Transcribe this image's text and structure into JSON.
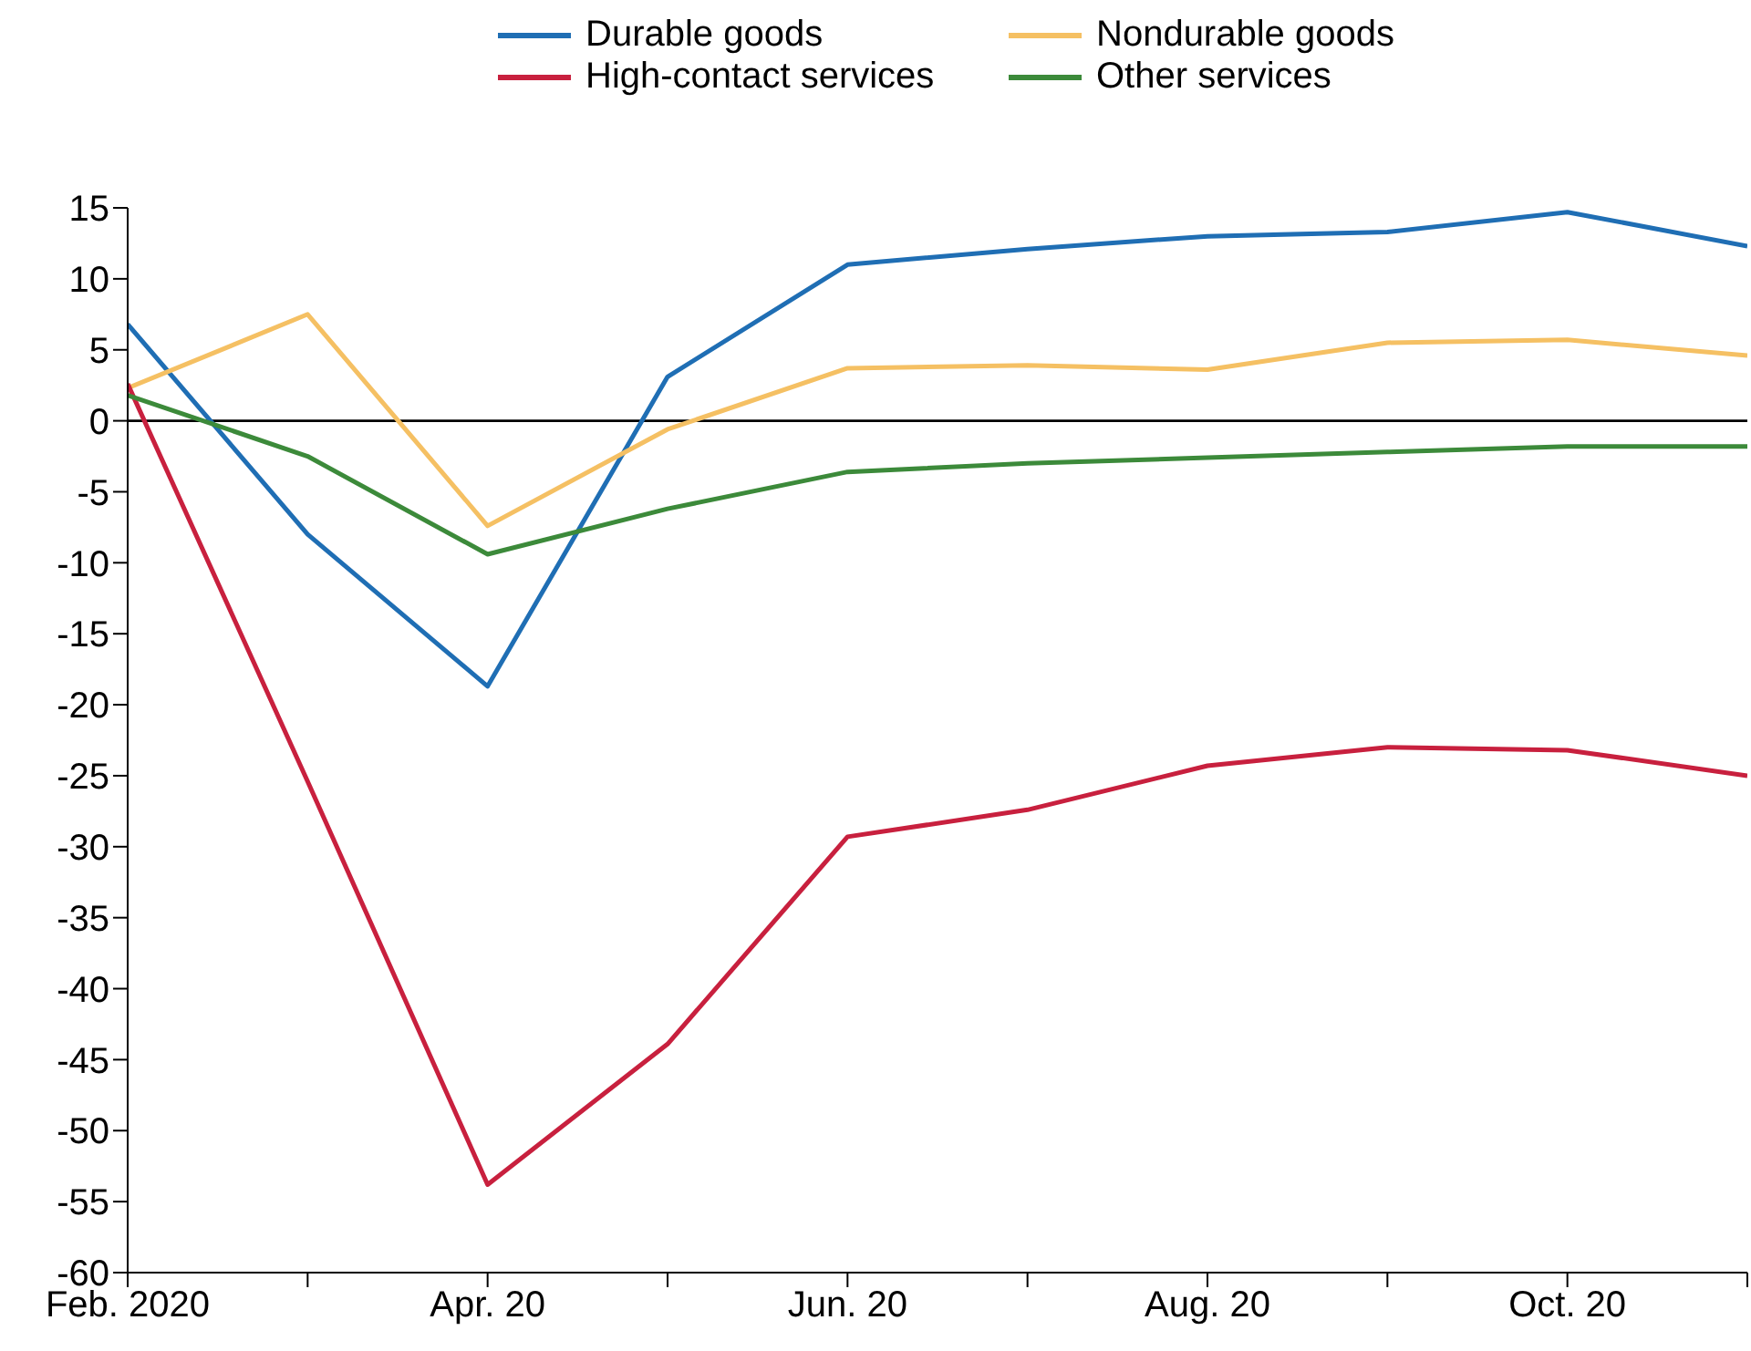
{
  "chart_data": {
    "type": "line",
    "categories": [
      "Feb. 2020",
      null,
      "Apr. 20",
      null,
      "Jun. 20",
      null,
      "Aug. 20",
      null,
      "Oct. 20",
      null
    ],
    "series": [
      {
        "name": "Durable goods",
        "color": "#1f6eb4",
        "values": [
          6.8,
          -8,
          -18.7,
          3.1,
          11,
          12.1,
          13,
          13.3,
          14.7,
          12.3
        ]
      },
      {
        "name": "Nondurable goods",
        "color": "#f5c063",
        "values": [
          2.3,
          7.5,
          -7.4,
          -0.6,
          3.7,
          3.9,
          3.6,
          5.5,
          5.7,
          4.6
        ]
      },
      {
        "name": "High-contact services",
        "color": "#c8203e",
        "values": [
          2.6,
          -25.4,
          -53.8,
          -43.9,
          -29.3,
          -27.4,
          -24.3,
          -23,
          -23.2,
          -25
        ]
      },
      {
        "name": "Other services",
        "color": "#3c8a3a",
        "values": [
          1.8,
          -2.5,
          -9.4,
          -6.2,
          -3.6,
          -3,
          -2.6,
          -2.2,
          -1.8,
          -1.8
        ]
      }
    ],
    "ylim": [
      -60,
      15
    ],
    "yticks": [
      -60,
      -55,
      -50,
      -45,
      -40,
      -35,
      -30,
      -25,
      -20,
      -15,
      -10,
      -5,
      0,
      5,
      10,
      15
    ],
    "ref_lines": [
      {
        "axis": "y",
        "value": 0,
        "color": "#000000"
      }
    ],
    "grid": false,
    "legend": "top",
    "marker": "none",
    "line_style": "solid"
  }
}
